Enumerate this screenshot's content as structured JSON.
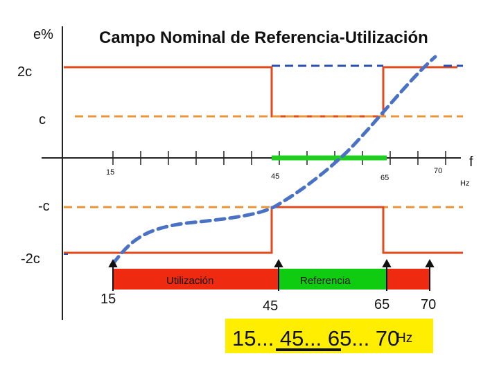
{
  "title": "Campo Nominal de Referencia-Utilización",
  "y_axis_label": "e%",
  "levels": {
    "plus_2c": "2c",
    "plus_c": "c",
    "minus_c": "-c",
    "minus_2c": "-2c"
  },
  "axis": {
    "f_label": "f",
    "hz_label": "Hz",
    "tick_labels": [
      "15",
      "45",
      "65",
      "70"
    ]
  },
  "bar": {
    "utilizacion_label": "Utilización",
    "referencia_label": "Referencia",
    "markers": [
      "15",
      "45",
      "65",
      "70"
    ]
  },
  "summary": {
    "sequence": "15... 45... 65... 70",
    "unit": "Hz"
  },
  "colors": {
    "limit_red": "#e04a1c",
    "dashed_orange": "#e8963a",
    "dashed_blue": "#2a4fb0",
    "curve_blue": "#4a72c4",
    "green_band": "#1fcf1f",
    "bar_red": "#ee2b10",
    "bar_green": "#10cc10",
    "summary_bg": "#ffee00"
  }
}
